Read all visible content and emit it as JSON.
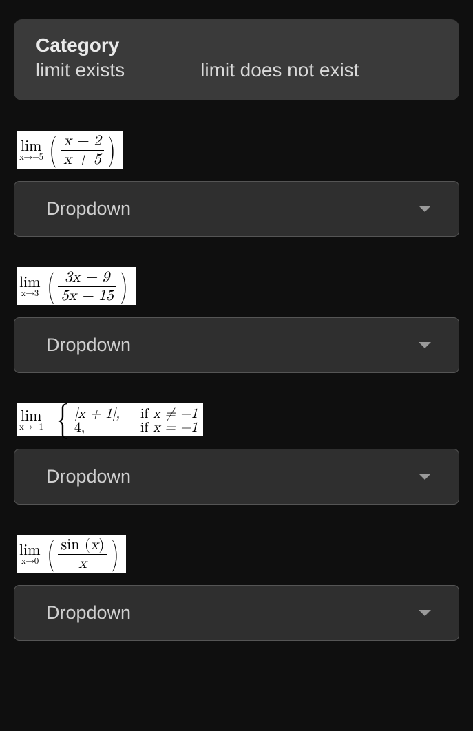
{
  "colors": {
    "page_bg": "#0f0f0f",
    "card_bg": "#3a3a3a",
    "dropdown_bg": "#2f2f2f",
    "dropdown_border": "#555555",
    "text": "#d9d9d9",
    "math_bg": "#ffffff",
    "math_text": "#000000",
    "chevron": "#9a9a9a"
  },
  "category": {
    "title": "Category",
    "options": [
      "limit exists",
      "limit does not exist"
    ]
  },
  "dropdown_placeholder": "Dropdown",
  "items": [
    {
      "type": "limit_fraction",
      "lim_top": "lim",
      "lim_bot": "x→−5",
      "numerator": "x − 2",
      "denominator": "x + 5",
      "parens": true
    },
    {
      "type": "limit_fraction",
      "lim_top": "lim",
      "lim_bot": "x→3",
      "numerator": "3x − 9",
      "denominator": "5x − 15",
      "parens": true
    },
    {
      "type": "limit_piecewise",
      "lim_top": "lim",
      "lim_bot": "x→−1",
      "rows": [
        {
          "left": "|x + 1|,",
          "right_prefix": "if ",
          "right_expr": "x ≠ −1"
        },
        {
          "left": "4,",
          "right_prefix": "if ",
          "right_expr": "x = −1"
        }
      ]
    },
    {
      "type": "limit_fraction",
      "lim_top": "lim",
      "lim_bot": "x→0",
      "numerator": "sin (x)",
      "denominator": "x",
      "parens": true,
      "num_upright": true
    }
  ]
}
